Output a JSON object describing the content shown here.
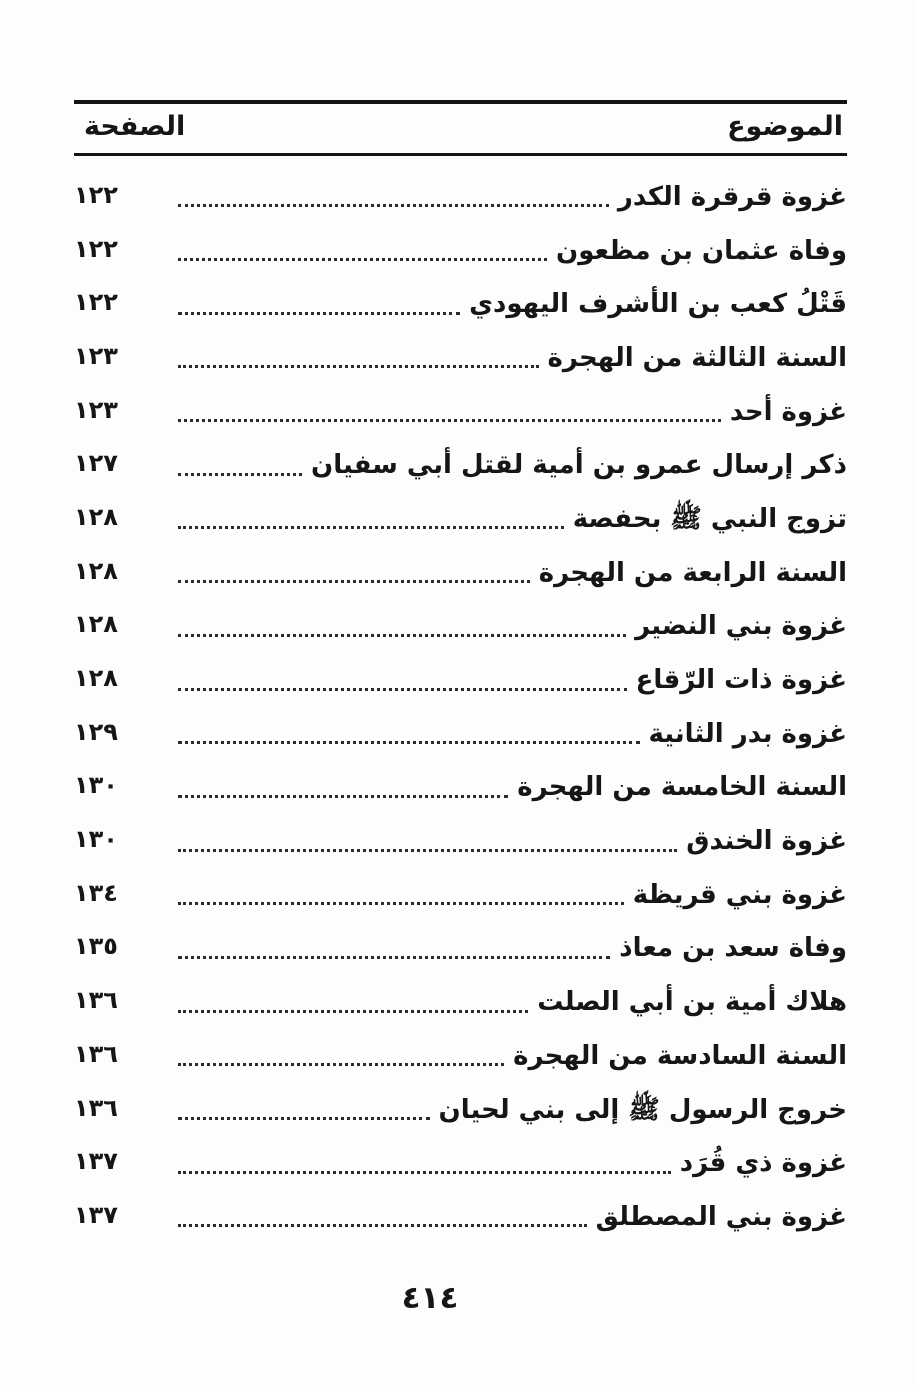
{
  "header": {
    "subject_label": "الموضوع",
    "page_label": "الصفحة"
  },
  "toc": {
    "entries": [
      {
        "title": "غزوة قرقرة الكدر",
        "page": "١٢٢",
        "bold": false
      },
      {
        "title": "وفاة عثمان بن مظعون",
        "page": "١٢٢",
        "bold": false
      },
      {
        "title": "قَتْلُ كعب بن الأشرف اليهودي",
        "page": "١٢٢",
        "bold": false
      },
      {
        "title": "السنة الثالثة من الهجرة",
        "page": "١٢٣",
        "bold": true
      },
      {
        "title": "غزوة أحد",
        "page": "١٢٣",
        "bold": false
      },
      {
        "title": "ذكر إرسال عمرو بن أمية لقتل أبي سفيان",
        "page": "١٢٧",
        "bold": false
      },
      {
        "title": "تزوج النبي ﷺ بحفصة",
        "page": "١٢٨",
        "bold": false
      },
      {
        "title": "السنة الرابعة من الهجرة",
        "page": "١٢٨",
        "bold": true
      },
      {
        "title": "غزوة بني النضير",
        "page": "١٢٨",
        "bold": false
      },
      {
        "title": "غزوة ذات الرّقاع",
        "page": "١٢٨",
        "bold": false
      },
      {
        "title": "غزوة بدر الثانية",
        "page": "١٢٩",
        "bold": false
      },
      {
        "title": "السنة الخامسة من الهجرة",
        "page": "١٣٠",
        "bold": true
      },
      {
        "title": "غزوة الخندق",
        "page": "١٣٠",
        "bold": false
      },
      {
        "title": "غزوة بني قريظة",
        "page": "١٣٤",
        "bold": false
      },
      {
        "title": "وفاة سعد بن معاذ",
        "page": "١٣٥",
        "bold": false
      },
      {
        "title": "هلاك أمية بن أبي الصلت",
        "page": "١٣٦",
        "bold": false
      },
      {
        "title": "السنة السادسة من الهجرة",
        "page": "١٣٦",
        "bold": true
      },
      {
        "title": "خروج الرسول ﷺ إلى بني لحيان",
        "page": "١٣٦",
        "bold": false
      },
      {
        "title": "غزوة ذي قُرَد",
        "page": "١٣٧",
        "bold": false
      },
      {
        "title": "غزوة بني المصطلق",
        "page": "١٣٧",
        "bold": false
      }
    ]
  },
  "footer": {
    "folio_number": "٤١٤"
  }
}
